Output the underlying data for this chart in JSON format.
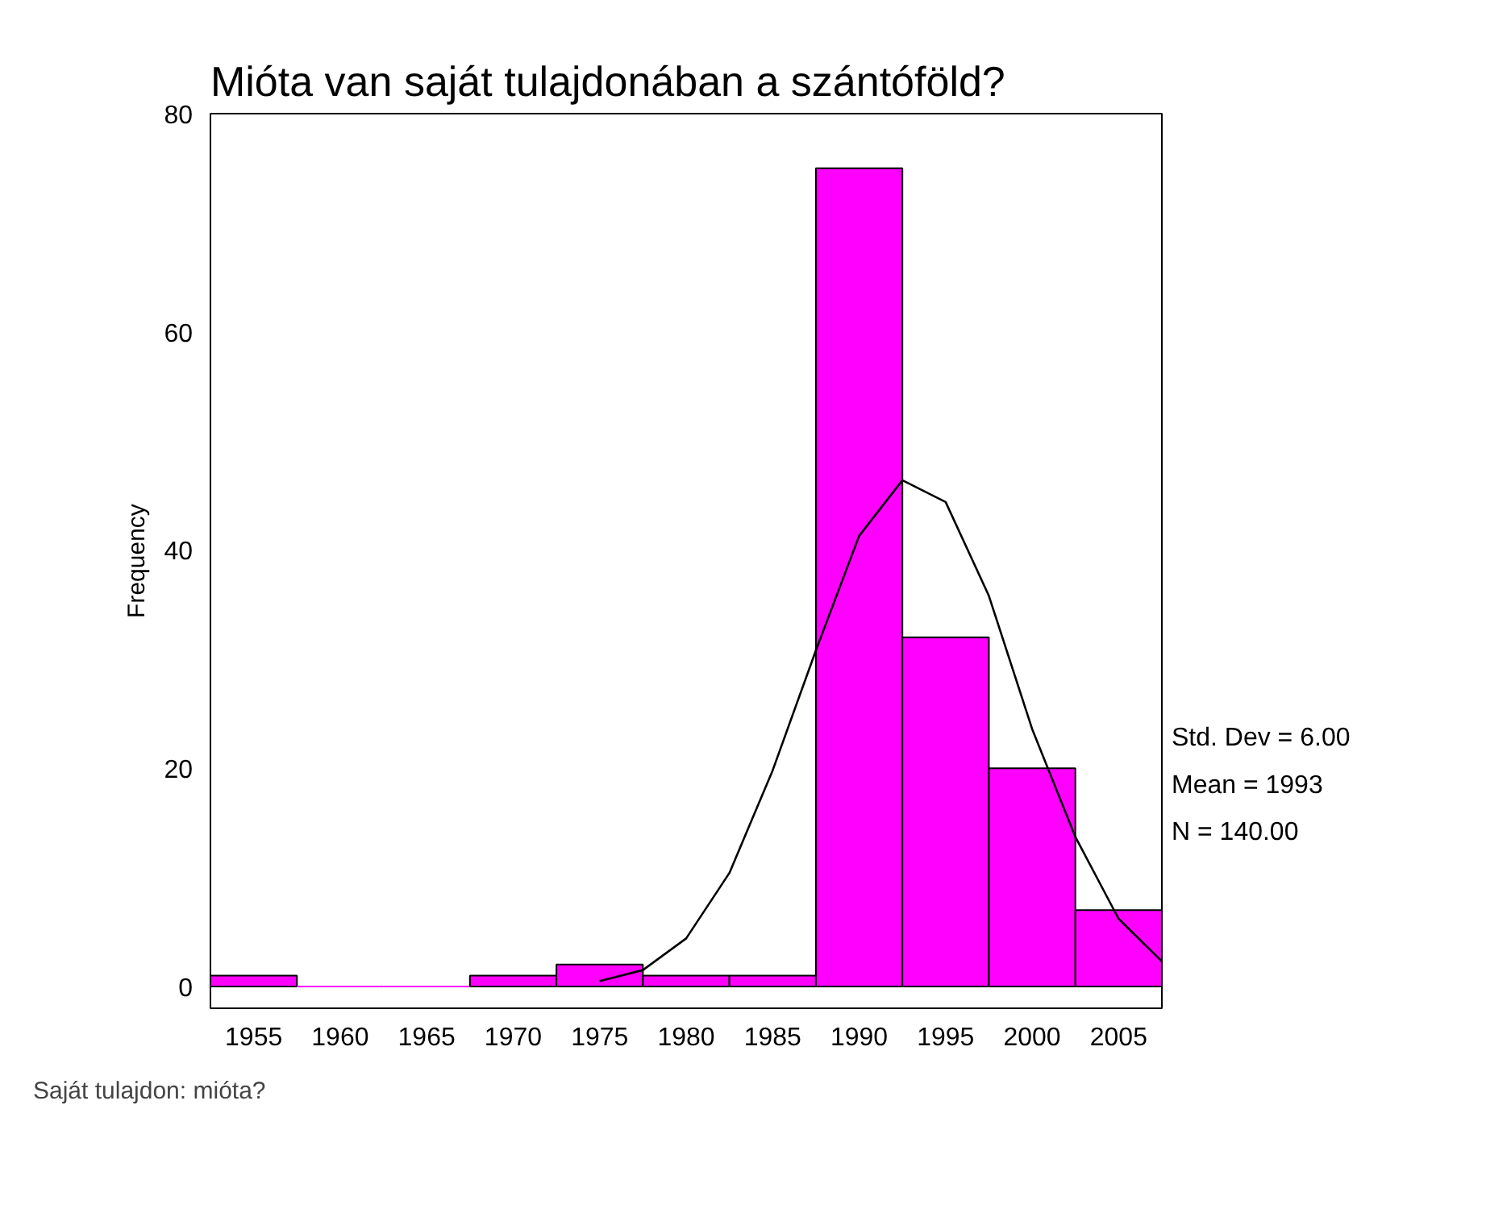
{
  "chart_data": {
    "type": "histogram",
    "title": "Mióta van saját tulajdonában a szántóföld?",
    "xlabel": "Saját tulajdon: mióta?",
    "ylabel": "Frequency",
    "bins": [
      1952.5,
      1957.5,
      1962.5,
      1967.5,
      1972.5,
      1977.5,
      1982.5,
      1987.5,
      1992.5,
      1997.5,
      2002.5,
      2007.5
    ],
    "values": [
      1,
      0,
      0,
      1,
      2,
      1,
      1,
      75,
      32,
      20,
      7
    ],
    "color": "#ff00ff",
    "series": [
      {
        "type": "line",
        "color": "#000000",
        "x": [
          1975,
          1977.5,
          1980,
          1982.5,
          1985,
          1987.5,
          1990,
          1992.5,
          1995,
          1997.5,
          2000,
          2002.5,
          2005,
          2007.5
        ],
        "values": [
          0.5,
          1.5,
          4.4,
          10.4,
          19.8,
          30.8,
          41.3,
          46.4,
          44.4,
          35.8,
          23.6,
          13.7,
          6.2,
          2.3
        ]
      }
    ],
    "xlim": [
      1952.5,
      2007.5
    ],
    "ylim": [
      -2,
      80
    ],
    "xticks": [
      1955,
      1960,
      1965,
      1970,
      1975,
      1980,
      1985,
      1990,
      1995,
      2000,
      2005
    ],
    "yticks": [
      0,
      20,
      40,
      60,
      80
    ],
    "annotations": [
      "Std. Dev = 6.00",
      "Mean = 1993",
      "N = 140.00"
    ],
    "grid": false
  }
}
